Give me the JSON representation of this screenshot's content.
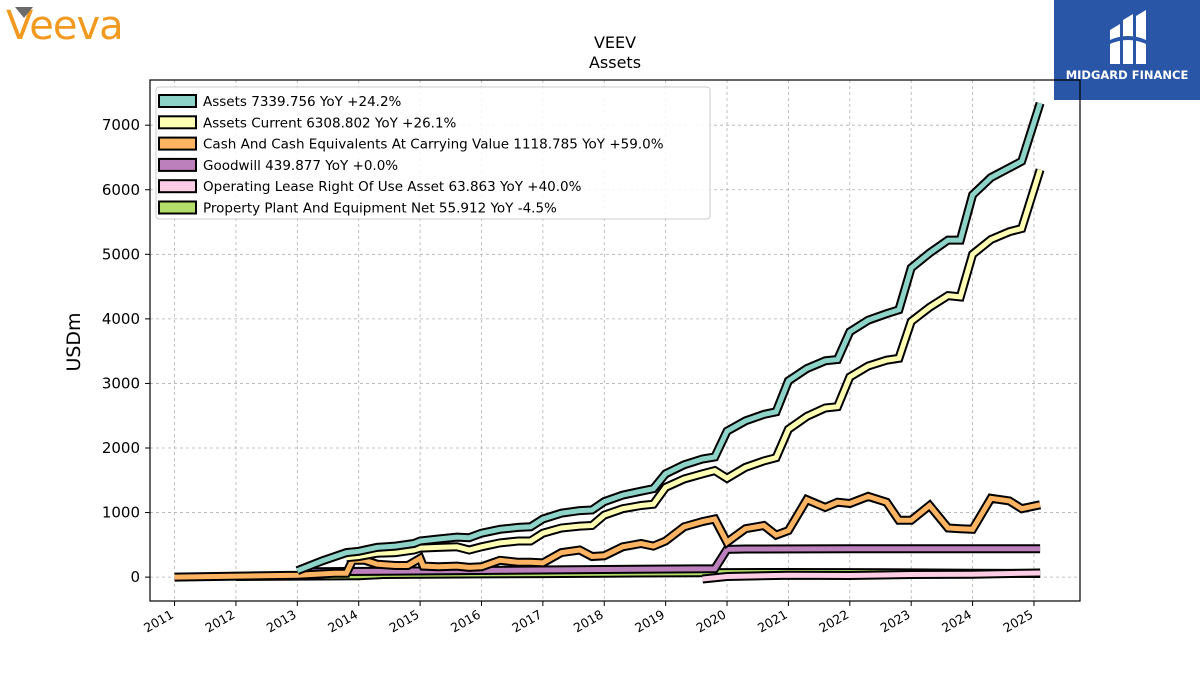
{
  "brand": {
    "logo_text": "Veeva",
    "partner_name": "MIDGARD FINANCE"
  },
  "colors": {
    "assets": "#8dd3c7",
    "assets_current": "#ffffb3",
    "cash": "#fdb462",
    "goodwill": "#bc80bd",
    "operating_lease": "#fccde5",
    "ppe": "#b3de69",
    "partner_bg": "#2a56a8",
    "brand_orange": "#f29a1f"
  },
  "chart_data": {
    "type": "line",
    "title": "VEEV",
    "subtitle": "Assets",
    "ylabel": "USDm",
    "xlabel": "",
    "xlim": [
      2010.6,
      2025.75
    ],
    "ylim": [
      -370,
      7700
    ],
    "yticks": [
      0,
      1000,
      2000,
      3000,
      4000,
      5000,
      6000,
      7000
    ],
    "xticks": [
      "2011",
      "2012",
      "2013",
      "2014",
      "2015",
      "2016",
      "2017",
      "2018",
      "2019",
      "2020",
      "2021",
      "2022",
      "2023",
      "2024",
      "2025"
    ],
    "grid": true,
    "legend_position": "top-left",
    "series": [
      {
        "name": "Assets",
        "legend": "Assets  7339.756 YoY +24.2%",
        "color_key": "assets",
        "points": [
          [
            2013.0,
            100
          ],
          [
            2013.4,
            250
          ],
          [
            2013.8,
            380
          ],
          [
            2014.0,
            400
          ],
          [
            2014.3,
            460
          ],
          [
            2014.6,
            480
          ],
          [
            2014.9,
            520
          ],
          [
            2015.0,
            560
          ],
          [
            2015.3,
            590
          ],
          [
            2015.6,
            620
          ],
          [
            2015.8,
            610
          ],
          [
            2016.0,
            680
          ],
          [
            2016.3,
            740
          ],
          [
            2016.6,
            770
          ],
          [
            2016.8,
            780
          ],
          [
            2017.0,
            900
          ],
          [
            2017.3,
            990
          ],
          [
            2017.6,
            1030
          ],
          [
            2017.8,
            1040
          ],
          [
            2018.0,
            1170
          ],
          [
            2018.3,
            1270
          ],
          [
            2018.6,
            1330
          ],
          [
            2018.8,
            1370
          ],
          [
            2019.0,
            1600
          ],
          [
            2019.3,
            1740
          ],
          [
            2019.6,
            1830
          ],
          [
            2019.8,
            1860
          ],
          [
            2020.0,
            2260
          ],
          [
            2020.3,
            2420
          ],
          [
            2020.6,
            2520
          ],
          [
            2020.8,
            2560
          ],
          [
            2021.0,
            3040
          ],
          [
            2021.3,
            3230
          ],
          [
            2021.6,
            3350
          ],
          [
            2021.8,
            3370
          ],
          [
            2022.0,
            3800
          ],
          [
            2022.3,
            3980
          ],
          [
            2022.6,
            4080
          ],
          [
            2022.8,
            4140
          ],
          [
            2023.0,
            4790
          ],
          [
            2023.3,
            5020
          ],
          [
            2023.6,
            5220
          ],
          [
            2023.8,
            5220
          ],
          [
            2024.0,
            5920
          ],
          [
            2024.3,
            6190
          ],
          [
            2024.6,
            6340
          ],
          [
            2024.8,
            6440
          ],
          [
            2025.1,
            7340
          ]
        ]
      },
      {
        "name": "Assets Current",
        "legend": "Assets Current  6308.802 YoY +26.1%",
        "color_key": "assets_current",
        "points": [
          [
            2013.8,
            300
          ],
          [
            2014.0,
            320
          ],
          [
            2014.3,
            370
          ],
          [
            2014.6,
            380
          ],
          [
            2014.9,
            420
          ],
          [
            2015.0,
            450
          ],
          [
            2015.3,
            460
          ],
          [
            2015.6,
            470
          ],
          [
            2015.8,
            420
          ],
          [
            2016.0,
            470
          ],
          [
            2016.3,
            530
          ],
          [
            2016.6,
            560
          ],
          [
            2016.8,
            560
          ],
          [
            2017.0,
            680
          ],
          [
            2017.3,
            760
          ],
          [
            2017.6,
            790
          ],
          [
            2017.8,
            800
          ],
          [
            2018.0,
            960
          ],
          [
            2018.3,
            1060
          ],
          [
            2018.6,
            1110
          ],
          [
            2018.8,
            1130
          ],
          [
            2019.0,
            1390
          ],
          [
            2019.3,
            1520
          ],
          [
            2019.6,
            1600
          ],
          [
            2019.8,
            1650
          ],
          [
            2020.0,
            1530
          ],
          [
            2020.3,
            1700
          ],
          [
            2020.6,
            1800
          ],
          [
            2020.8,
            1850
          ],
          [
            2021.0,
            2290
          ],
          [
            2021.3,
            2490
          ],
          [
            2021.6,
            2620
          ],
          [
            2021.8,
            2640
          ],
          [
            2022.0,
            3100
          ],
          [
            2022.3,
            3270
          ],
          [
            2022.6,
            3360
          ],
          [
            2022.8,
            3390
          ],
          [
            2023.0,
            3960
          ],
          [
            2023.3,
            4180
          ],
          [
            2023.6,
            4360
          ],
          [
            2023.8,
            4340
          ],
          [
            2024.0,
            5000
          ],
          [
            2024.3,
            5230
          ],
          [
            2024.6,
            5350
          ],
          [
            2024.8,
            5400
          ],
          [
            2025.1,
            6310
          ]
        ]
      },
      {
        "name": "Cash And Cash Equivalents At Carrying Value",
        "legend": "Cash And Cash Equivalents At Carrying Value  1118.785 YoY +59.0%",
        "color_key": "cash",
        "points": [
          [
            2011.0,
            0
          ],
          [
            2013.0,
            30
          ],
          [
            2013.6,
            60
          ],
          [
            2013.8,
            60
          ],
          [
            2013.9,
            260
          ],
          [
            2014.1,
            260
          ],
          [
            2014.3,
            200
          ],
          [
            2014.6,
            180
          ],
          [
            2014.8,
            180
          ],
          [
            2015.0,
            290
          ],
          [
            2015.05,
            170
          ],
          [
            2015.3,
            160
          ],
          [
            2015.6,
            170
          ],
          [
            2015.8,
            150
          ],
          [
            2016.0,
            160
          ],
          [
            2016.3,
            260
          ],
          [
            2016.6,
            230
          ],
          [
            2016.8,
            230
          ],
          [
            2017.0,
            220
          ],
          [
            2017.3,
            380
          ],
          [
            2017.6,
            420
          ],
          [
            2017.8,
            320
          ],
          [
            2018.0,
            330
          ],
          [
            2018.3,
            470
          ],
          [
            2018.6,
            520
          ],
          [
            2018.8,
            480
          ],
          [
            2019.0,
            560
          ],
          [
            2019.3,
            780
          ],
          [
            2019.6,
            860
          ],
          [
            2019.8,
            900
          ],
          [
            2020.0,
            540
          ],
          [
            2020.3,
            750
          ],
          [
            2020.6,
            800
          ],
          [
            2020.8,
            650
          ],
          [
            2021.0,
            720
          ],
          [
            2021.3,
            1200
          ],
          [
            2021.6,
            1080
          ],
          [
            2021.8,
            1160
          ],
          [
            2022.0,
            1140
          ],
          [
            2022.3,
            1250
          ],
          [
            2022.6,
            1160
          ],
          [
            2022.8,
            880
          ],
          [
            2023.0,
            880
          ],
          [
            2023.3,
            1110
          ],
          [
            2023.6,
            760
          ],
          [
            2023.8,
            750
          ],
          [
            2024.0,
            740
          ],
          [
            2024.3,
            1220
          ],
          [
            2024.6,
            1180
          ],
          [
            2024.8,
            1060
          ],
          [
            2025.1,
            1120
          ]
        ]
      },
      {
        "name": "Goodwill",
        "legend": "Goodwill  439.877 YoY +0.0%",
        "color_key": "goodwill",
        "points": [
          [
            2013.0,
            80
          ],
          [
            2019.8,
            130
          ],
          [
            2020.0,
            430
          ],
          [
            2020.3,
            435
          ],
          [
            2022.0,
            440
          ],
          [
            2025.1,
            440
          ]
        ]
      },
      {
        "name": "Operating Lease Right Of Use Asset",
        "legend": "Operating Lease Right Of Use Asset  63.863 YoY +40.0%",
        "color_key": "operating_lease",
        "points": [
          [
            2019.6,
            -30
          ],
          [
            2020.0,
            10
          ],
          [
            2021.0,
            30
          ],
          [
            2022.0,
            25
          ],
          [
            2023.0,
            40
          ],
          [
            2024.0,
            45
          ],
          [
            2025.1,
            64
          ]
        ]
      },
      {
        "name": "Property Plant And Equipment Net",
        "legend": "Property Plant And Equipment Net  55.912 YoY -4.5%",
        "color_key": "ppe",
        "points": [
          [
            2012.0,
            10
          ],
          [
            2013.0,
            15
          ],
          [
            2014.0,
            20
          ],
          [
            2014.4,
            40
          ],
          [
            2015.0,
            45
          ],
          [
            2016.0,
            50
          ],
          [
            2017.0,
            55
          ],
          [
            2018.0,
            60
          ],
          [
            2019.0,
            65
          ],
          [
            2020.0,
            70
          ],
          [
            2021.0,
            72
          ],
          [
            2022.0,
            70
          ],
          [
            2023.0,
            65
          ],
          [
            2024.0,
            60
          ],
          [
            2025.1,
            56
          ]
        ]
      }
    ]
  }
}
